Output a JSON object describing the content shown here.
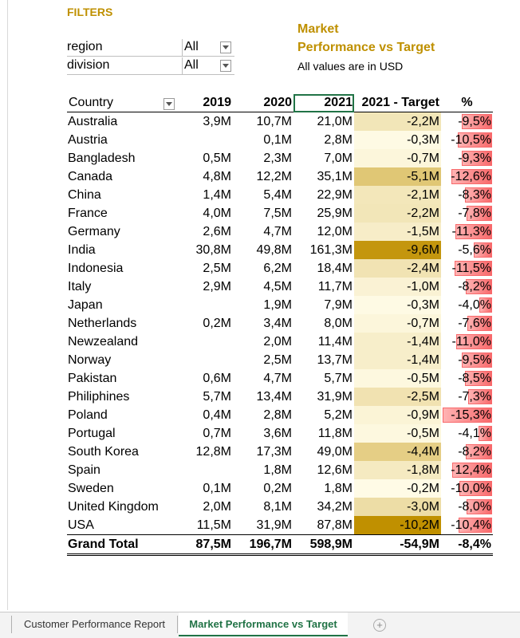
{
  "filters": {
    "title": "FILTERS",
    "items": [
      {
        "label": "region",
        "value": "All"
      },
      {
        "label": "division",
        "value": "All"
      }
    ]
  },
  "report": {
    "title_line1": "Market",
    "title_line2": "Performance vs Target",
    "subtitle": "All values are in USD"
  },
  "table": {
    "headers": [
      "Country",
      "2019",
      "2020",
      "2021",
      "2021 - Target",
      "%"
    ],
    "rows": [
      {
        "country": "Australia",
        "y2019": "3,9M",
        "y2020": "10,7M",
        "y2021": "21,0M",
        "diff": "-2,2M",
        "pct": "-9,5%",
        "diff_num": -2.2,
        "pct_num": -9.5
      },
      {
        "country": "Austria",
        "y2019": "",
        "y2020": "0,1M",
        "y2021": "2,8M",
        "diff": "-0,3M",
        "pct": "-10,5%",
        "diff_num": -0.3,
        "pct_num": -10.5
      },
      {
        "country": "Bangladesh",
        "y2019": "0,5M",
        "y2020": "2,3M",
        "y2021": "7,0M",
        "diff": "-0,7M",
        "pct": "-9,3%",
        "diff_num": -0.7,
        "pct_num": -9.3
      },
      {
        "country": "Canada",
        "y2019": "4,8M",
        "y2020": "12,2M",
        "y2021": "35,1M",
        "diff": "-5,1M",
        "pct": "-12,6%",
        "diff_num": -5.1,
        "pct_num": -12.6
      },
      {
        "country": "China",
        "y2019": "1,4M",
        "y2020": "5,4M",
        "y2021": "22,9M",
        "diff": "-2,1M",
        "pct": "-8,3%",
        "diff_num": -2.1,
        "pct_num": -8.3
      },
      {
        "country": "France",
        "y2019": "4,0M",
        "y2020": "7,5M",
        "y2021": "25,9M",
        "diff": "-2,2M",
        "pct": "-7,8%",
        "diff_num": -2.2,
        "pct_num": -7.8
      },
      {
        "country": "Germany",
        "y2019": "2,6M",
        "y2020": "4,7M",
        "y2021": "12,0M",
        "diff": "-1,5M",
        "pct": "-11,3%",
        "diff_num": -1.5,
        "pct_num": -11.3
      },
      {
        "country": "India",
        "y2019": "30,8M",
        "y2020": "49,8M",
        "y2021": "161,3M",
        "diff": "-9,6M",
        "pct": "-5,6%",
        "diff_num": -9.6,
        "pct_num": -5.6
      },
      {
        "country": "Indonesia",
        "y2019": "2,5M",
        "y2020": "6,2M",
        "y2021": "18,4M",
        "diff": "-2,4M",
        "pct": "-11,5%",
        "diff_num": -2.4,
        "pct_num": -11.5
      },
      {
        "country": "Italy",
        "y2019": "2,9M",
        "y2020": "4,5M",
        "y2021": "11,7M",
        "diff": "-1,0M",
        "pct": "-8,2%",
        "diff_num": -1.0,
        "pct_num": -8.2
      },
      {
        "country": "Japan",
        "y2019": "",
        "y2020": "1,9M",
        "y2021": "7,9M",
        "diff": "-0,3M",
        "pct": "-4,0%",
        "diff_num": -0.3,
        "pct_num": -4.0
      },
      {
        "country": "Netherlands",
        "y2019": "0,2M",
        "y2020": "3,4M",
        "y2021": "8,0M",
        "diff": "-0,7M",
        "pct": "-7,6%",
        "diff_num": -0.7,
        "pct_num": -7.6
      },
      {
        "country": "Newzealand",
        "y2019": "",
        "y2020": "2,0M",
        "y2021": "11,4M",
        "diff": "-1,4M",
        "pct": "-11,0%",
        "diff_num": -1.4,
        "pct_num": -11.0
      },
      {
        "country": "Norway",
        "y2019": "",
        "y2020": "2,5M",
        "y2021": "13,7M",
        "diff": "-1,4M",
        "pct": "-9,5%",
        "diff_num": -1.4,
        "pct_num": -9.5
      },
      {
        "country": "Pakistan",
        "y2019": "0,6M",
        "y2020": "4,7M",
        "y2021": "5,7M",
        "diff": "-0,5M",
        "pct": "-8,5%",
        "diff_num": -0.5,
        "pct_num": -8.5
      },
      {
        "country": "Philiphines",
        "y2019": "5,7M",
        "y2020": "13,4M",
        "y2021": "31,9M",
        "diff": "-2,5M",
        "pct": "-7,3%",
        "diff_num": -2.5,
        "pct_num": -7.3
      },
      {
        "country": "Poland",
        "y2019": "0,4M",
        "y2020": "2,8M",
        "y2021": "5,2M",
        "diff": "-0,9M",
        "pct": "-15,3%",
        "diff_num": -0.9,
        "pct_num": -15.3
      },
      {
        "country": "Portugal",
        "y2019": "0,7M",
        "y2020": "3,6M",
        "y2021": "11,8M",
        "diff": "-0,5M",
        "pct": "-4,1%",
        "diff_num": -0.5,
        "pct_num": -4.1
      },
      {
        "country": "South Korea",
        "y2019": "12,8M",
        "y2020": "17,3M",
        "y2021": "49,0M",
        "diff": "-4,4M",
        "pct": "-8,2%",
        "diff_num": -4.4,
        "pct_num": -8.2
      },
      {
        "country": "Spain",
        "y2019": "",
        "y2020": "1,8M",
        "y2021": "12,6M",
        "diff": "-1,8M",
        "pct": "-12,4%",
        "diff_num": -1.8,
        "pct_num": -12.4
      },
      {
        "country": "Sweden",
        "y2019": "0,1M",
        "y2020": "0,2M",
        "y2021": "1,8M",
        "diff": "-0,2M",
        "pct": "-10,0%",
        "diff_num": -0.2,
        "pct_num": -10.0
      },
      {
        "country": "United Kingdom",
        "y2019": "2,0M",
        "y2020": "8,1M",
        "y2021": "34,2M",
        "diff": "-3,0M",
        "pct": "-8,0%",
        "diff_num": -3.0,
        "pct_num": -8.0
      },
      {
        "country": "USA",
        "y2019": "11,5M",
        "y2020": "31,9M",
        "y2021": "87,8M",
        "diff": "-10,2M",
        "pct": "-10,4%",
        "diff_num": -10.2,
        "pct_num": -10.4
      }
    ],
    "total": {
      "country": "Grand Total",
      "y2019": "87,5M",
      "y2020": "196,7M",
      "y2021": "598,9M",
      "diff": "-54,9M",
      "pct": "-8,4%"
    }
  },
  "colors": {
    "heat_light": "#fffbe6",
    "heat_dark": "#c09000",
    "pct_bar": "#f8696b",
    "title_gold": "#bf9000",
    "sheet_tab_active": "#217346"
  },
  "sheet_tabs": [
    {
      "label": "Customer Performance Report",
      "active": false
    },
    {
      "label": "Market Performance vs Target",
      "active": true
    }
  ]
}
